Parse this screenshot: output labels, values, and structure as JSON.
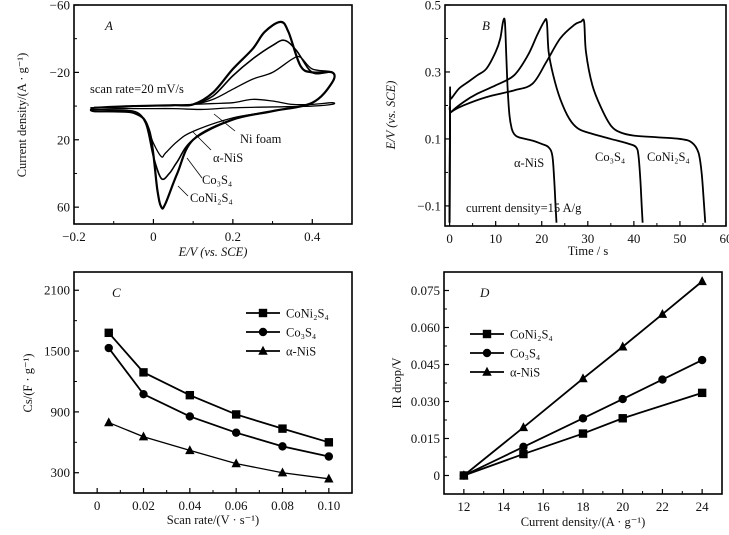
{
  "figure": {
    "line_color": "#000000",
    "background": "#ffffff"
  },
  "chart_data": [
    {
      "id": "A",
      "panel_label": "A",
      "type": "line",
      "title": "",
      "xlabel": "E/V (vs. SCE)",
      "ylabel": "Current density/(A · g⁻¹)",
      "xlim": [
        -0.2,
        0.5
      ],
      "ylim": [
        -60,
        70
      ],
      "y_inverted": true,
      "xticks": [
        -0.2,
        0,
        0.2,
        0.4
      ],
      "xtick_labels": [
        "−0.2",
        "0",
        "0.2",
        "0.4"
      ],
      "yticks": [
        -60,
        -20,
        20,
        60
      ],
      "ytick_labels": [
        "−60",
        "−20",
        "20",
        "60"
      ],
      "annotation": "scan rate=20 mV/s",
      "series": [
        {
          "name": "Ni foam",
          "label": "Ni foam",
          "x": [
            -0.15,
            -0.05,
            0.05,
            0.1,
            0.15,
            0.2,
            0.25,
            0.3,
            0.35,
            0.4,
            0.45,
            0.45,
            0.4,
            0.3,
            0.2,
            0.12,
            0.05,
            -0.05,
            -0.15
          ],
          "y": [
            1,
            0,
            -0.5,
            -1,
            -1.5,
            -2,
            -4,
            -3,
            -1,
            -1,
            -2,
            -1,
            0,
            0.5,
            1,
            2,
            1.5,
            1.5,
            1
          ]
        },
        {
          "name": "α-NiS",
          "label": "α-NiS",
          "x": [
            -0.15,
            -0.05,
            0.05,
            0.1,
            0.15,
            0.2,
            0.25,
            0.3,
            0.35,
            0.37,
            0.4,
            0.45,
            0.45,
            0.4,
            0.3,
            0.2,
            0.1,
            0.06,
            0.03,
            0.02,
            0.0,
            -0.02,
            -0.05,
            -0.15
          ],
          "y": [
            1,
            0,
            -0.5,
            -1,
            -4,
            -10,
            -16,
            -20,
            -28,
            -29,
            -22,
            -20,
            -14,
            -2,
            3,
            7,
            15,
            21,
            28,
            30,
            22,
            10,
            3,
            2
          ]
        },
        {
          "name": "Co3S4",
          "label": "Co₃S₄",
          "x": [
            -0.15,
            -0.05,
            0.05,
            0.1,
            0.15,
            0.2,
            0.25,
            0.3,
            0.33,
            0.36,
            0.4,
            0.45,
            0.45,
            0.4,
            0.3,
            0.2,
            0.1,
            0.06,
            0.04,
            0.02,
            0.0,
            -0.02,
            -0.05,
            -0.15
          ],
          "y": [
            1,
            0,
            -0.5,
            -1,
            -6,
            -18,
            -28,
            -36,
            -39,
            -33,
            -20,
            -20,
            -14,
            -2,
            3,
            8,
            20,
            33,
            40,
            43,
            30,
            10,
            4,
            3
          ]
        },
        {
          "name": "CoNi2S4",
          "label": "CoNi₂S₄",
          "x": [
            -0.15,
            -0.05,
            0.05,
            0.1,
            0.15,
            0.2,
            0.25,
            0.28,
            0.32,
            0.34,
            0.37,
            0.4,
            0.45,
            0.45,
            0.4,
            0.3,
            0.2,
            0.1,
            0.06,
            0.03,
            0.02,
            0.01,
            -0.01,
            -0.05,
            -0.15
          ],
          "y": [
            1,
            0,
            -0.5,
            -1,
            -8,
            -22,
            -34,
            -44,
            -50,
            -44,
            -24,
            -20,
            -20,
            -14,
            -2,
            3,
            8,
            20,
            40,
            58,
            60,
            50,
            15,
            4,
            3
          ]
        }
      ]
    },
    {
      "id": "B",
      "panel_label": "B",
      "type": "line",
      "title": "",
      "xlabel": "Time / s",
      "ylabel": "E/V (vs. SCE)",
      "xlim": [
        -1,
        60
      ],
      "ylim": [
        -0.16,
        0.5
      ],
      "xticks": [
        0,
        10,
        20,
        30,
        40,
        50,
        60
      ],
      "xtick_labels": [
        "0",
        "10",
        "20",
        "30",
        "40",
        "50",
        "60"
      ],
      "yticks": [
        -0.1,
        0.1,
        0.3,
        0.5
      ],
      "ytick_labels": [
        "−0.1",
        "0.1",
        "0.3",
        "0.5"
      ],
      "annotation": "current density=15 A/g",
      "series": [
        {
          "name": "α-NiS",
          "label": "α-NiS",
          "x": [
            0,
            0.1,
            0.3,
            2,
            4,
            6,
            8,
            10,
            11,
            11.6,
            12,
            12.3,
            12.6,
            13,
            13.5,
            14,
            15,
            18,
            20,
            21.5,
            22.3,
            22.7,
            23,
            23.2
          ],
          "y": [
            -0.15,
            0.23,
            0.22,
            0.25,
            0.27,
            0.29,
            0.31,
            0.36,
            0.4,
            0.45,
            0.45,
            0.35,
            0.25,
            0.17,
            0.13,
            0.115,
            0.105,
            0.095,
            0.085,
            0.075,
            0.05,
            -0.02,
            -0.1,
            -0.15
          ]
        },
        {
          "name": "Co3S4",
          "label": "Co₃S₄",
          "x": [
            0,
            0.1,
            0.3,
            3,
            6,
            10,
            14,
            17,
            19,
            20.5,
            21.1,
            21.5,
            22.5,
            24,
            26,
            28,
            31,
            35,
            39,
            40.5,
            41,
            41.4,
            41.7,
            41.9
          ],
          "y": [
            -0.15,
            0.17,
            0.18,
            0.21,
            0.235,
            0.26,
            0.29,
            0.35,
            0.41,
            0.45,
            0.45,
            0.36,
            0.29,
            0.22,
            0.16,
            0.13,
            0.115,
            0.1,
            0.085,
            0.075,
            0.05,
            -0.02,
            -0.1,
            -0.15
          ]
        },
        {
          "name": "CoNi2S4",
          "label": "CoNi₂S₄",
          "x": [
            0,
            0.1,
            0.3,
            3,
            8,
            14,
            18,
            21,
            24,
            27,
            28.5,
            29.2,
            29.6,
            31,
            33,
            35,
            37,
            40,
            45,
            50,
            52.5,
            54,
            54.7,
            55.2,
            55.5
          ],
          "y": [
            -0.15,
            0.17,
            0.18,
            0.2,
            0.225,
            0.245,
            0.265,
            0.33,
            0.4,
            0.44,
            0.45,
            0.45,
            0.36,
            0.26,
            0.19,
            0.14,
            0.12,
            0.11,
            0.105,
            0.1,
            0.09,
            0.06,
            0.0,
            -0.09,
            -0.15
          ]
        }
      ]
    },
    {
      "id": "C",
      "panel_label": "C",
      "type": "line",
      "title": "",
      "xlabel": "Scan rate/(V · s⁻¹)",
      "ylabel": "Cs/(F · g⁻¹)",
      "xlim": [
        -0.01,
        0.11
      ],
      "ylim": [
        100,
        2280
      ],
      "xticks": [
        0,
        0.02,
        0.04,
        0.06,
        0.08,
        0.1
      ],
      "xtick_labels": [
        "0",
        "0.02",
        "0.04",
        "0.06",
        "0.08",
        "0.10"
      ],
      "yticks": [
        300,
        900,
        1500,
        2100
      ],
      "ytick_labels": [
        "300",
        "900",
        "1500",
        "2100"
      ],
      "legend_position": "top-right",
      "x": [
        0.005,
        0.02,
        0.04,
        0.06,
        0.08,
        0.1
      ],
      "series": [
        {
          "name": "CoNi2S4",
          "label": "CoNi₂S₄",
          "marker": "square",
          "values": [
            1680,
            1290,
            1065,
            875,
            735,
            600
          ]
        },
        {
          "name": "Co3S4",
          "label": "Co₃S₄",
          "marker": "circle",
          "values": [
            1530,
            1075,
            855,
            695,
            560,
            460
          ]
        },
        {
          "name": "α-NiS",
          "label": "α-NiS",
          "marker": "triangle",
          "values": [
            795,
            655,
            520,
            390,
            300,
            240
          ]
        }
      ]
    },
    {
      "id": "D",
      "panel_label": "D",
      "type": "line",
      "title": "",
      "xlabel": "Current density/(A · g⁻¹)",
      "ylabel": "IR drop/V",
      "xlim": [
        11,
        25
      ],
      "ylim": [
        -0.0075,
        0.0825
      ],
      "xticks": [
        12,
        14,
        16,
        18,
        20,
        22,
        24
      ],
      "xtick_labels": [
        "12",
        "14",
        "16",
        "18",
        "20",
        "22",
        "24"
      ],
      "yticks": [
        0,
        0.015,
        0.03,
        0.045,
        0.06,
        0.075
      ],
      "ytick_labels": [
        "0",
        "0.015",
        "0.030",
        "0.045",
        "0.060",
        "0.075"
      ],
      "legend_position": "top-left",
      "series": [
        {
          "name": "CoNi2S4",
          "label": "CoNi₂S₄",
          "marker": "square",
          "x": [
            12,
            15,
            18,
            20,
            24
          ],
          "values": [
            0,
            0.0087,
            0.017,
            0.0232,
            0.0335
          ]
        },
        {
          "name": "Co3S4",
          "label": "Co₃S₄",
          "marker": "circle",
          "x": [
            12,
            15,
            18,
            20,
            22,
            24
          ],
          "values": [
            0,
            0.0116,
            0.0232,
            0.031,
            0.0389,
            0.0468
          ]
        },
        {
          "name": "α-NiS",
          "label": "α-NiS",
          "marker": "triangle",
          "x": [
            12,
            15,
            18,
            20,
            22,
            24
          ],
          "values": [
            0,
            0.0195,
            0.0393,
            0.0522,
            0.0654,
            0.0787
          ]
        }
      ]
    }
  ]
}
